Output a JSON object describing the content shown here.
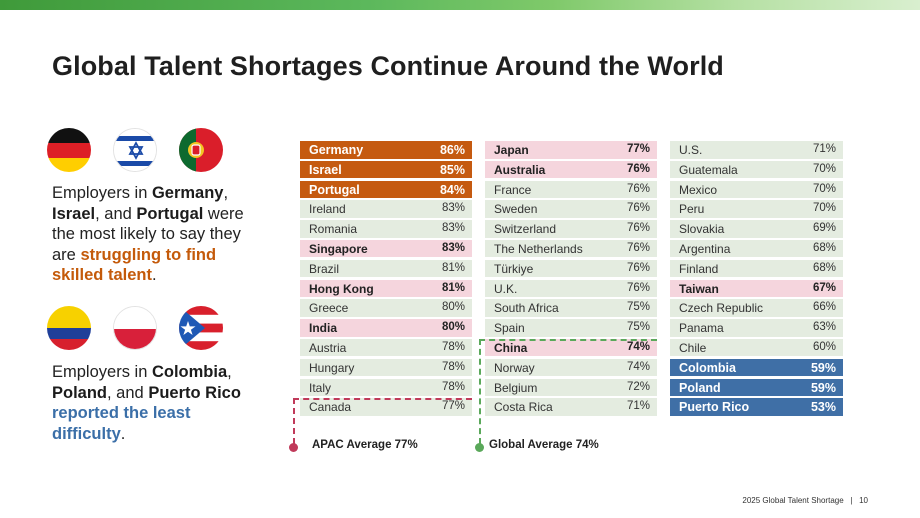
{
  "title": "Global Talent Shortages Continue Around the World",
  "colors": {
    "orange": "#c55a10",
    "pink": "#f5d5dd",
    "blue": "#3f6fa6",
    "neutral": "#e4ece0",
    "apac": "#c03a5a",
    "global": "#5aa85a"
  },
  "blurb_top": {
    "p1": "Employers in ",
    "c1": "Germany",
    "p2": ",",
    "c2": "Israel",
    "p3": ", and ",
    "c3": "Portugal",
    "p4": " were the most likely to say they are ",
    "emph": "struggling to find skilled talent",
    "p5": "."
  },
  "blurb_bottom": {
    "p1": "Employers in ",
    "c1": "Colombia",
    "p2": ",",
    "c2": "Poland",
    "p3": ", and ",
    "c3": "Puerto Rico",
    "p4": " ",
    "emph": "reported the least difficulty",
    "p5": "."
  },
  "flags": [
    "germany-flag-icon",
    "israel-flag-icon",
    "portugal-flag-icon",
    "colombia-flag-icon",
    "poland-flag-icon",
    "puerto-rico-flag-icon"
  ],
  "columns": [
    [
      {
        "name": "Germany",
        "pct": "86%",
        "style": "orange"
      },
      {
        "name": "Israel",
        "pct": "85%",
        "style": "orange"
      },
      {
        "name": "Portugal",
        "pct": "84%",
        "style": "orange"
      },
      {
        "name": "Ireland",
        "pct": "83%",
        "style": "neutral"
      },
      {
        "name": "Romania",
        "pct": "83%",
        "style": "neutral"
      },
      {
        "name": "Singapore",
        "pct": "83%",
        "style": "pink"
      },
      {
        "name": "Brazil",
        "pct": "81%",
        "style": "neutral"
      },
      {
        "name": "Hong Kong",
        "pct": "81%",
        "style": "pink"
      },
      {
        "name": "Greece",
        "pct": "80%",
        "style": "neutral"
      },
      {
        "name": "India",
        "pct": "80%",
        "style": "pink"
      },
      {
        "name": "Austria",
        "pct": "78%",
        "style": "neutral"
      },
      {
        "name": "Hungary",
        "pct": "78%",
        "style": "neutral"
      },
      {
        "name": "Italy",
        "pct": "78%",
        "style": "neutral"
      },
      {
        "name": "Canada",
        "pct": "77%",
        "style": "neutral"
      }
    ],
    [
      {
        "name": "Japan",
        "pct": "77%",
        "style": "pink"
      },
      {
        "name": "Australia",
        "pct": "76%",
        "style": "pink"
      },
      {
        "name": "France",
        "pct": "76%",
        "style": "neutral"
      },
      {
        "name": "Sweden",
        "pct": "76%",
        "style": "neutral"
      },
      {
        "name": "Switzerland",
        "pct": "76%",
        "style": "neutral"
      },
      {
        "name": "The Netherlands",
        "pct": "76%",
        "style": "neutral"
      },
      {
        "name": "Türkiye",
        "pct": "76%",
        "style": "neutral"
      },
      {
        "name": "U.K.",
        "pct": "76%",
        "style": "neutral"
      },
      {
        "name": "South Africa",
        "pct": "75%",
        "style": "neutral"
      },
      {
        "name": "Spain",
        "pct": "75%",
        "style": "neutral"
      },
      {
        "name": "China",
        "pct": "74%",
        "style": "pink"
      },
      {
        "name": "Norway",
        "pct": "74%",
        "style": "neutral"
      },
      {
        "name": "Belgium",
        "pct": "72%",
        "style": "neutral"
      },
      {
        "name": "Costa Rica",
        "pct": "71%",
        "style": "neutral"
      }
    ],
    [
      {
        "name": "U.S.",
        "pct": "71%",
        "style": "neutral"
      },
      {
        "name": "Guatemala",
        "pct": "70%",
        "style": "neutral"
      },
      {
        "name": "Mexico",
        "pct": "70%",
        "style": "neutral"
      },
      {
        "name": "Peru",
        "pct": "70%",
        "style": "neutral"
      },
      {
        "name": "Slovakia",
        "pct": "69%",
        "style": "neutral"
      },
      {
        "name": "Argentina",
        "pct": "68%",
        "style": "neutral"
      },
      {
        "name": "Finland",
        "pct": "68%",
        "style": "neutral"
      },
      {
        "name": "Taiwan",
        "pct": "67%",
        "style": "pink"
      },
      {
        "name": "Czech Republic",
        "pct": "66%",
        "style": "neutral"
      },
      {
        "name": "Panama",
        "pct": "63%",
        "style": "neutral"
      },
      {
        "name": "Chile",
        "pct": "60%",
        "style": "neutral"
      },
      {
        "name": "Colombia",
        "pct": "59%",
        "style": "blue"
      },
      {
        "name": "Poland",
        "pct": "59%",
        "style": "blue"
      },
      {
        "name": "Puerto Rico",
        "pct": "53%",
        "style": "blue"
      }
    ]
  ],
  "legend": {
    "apac": "APAC Average 77%",
    "global": "Global Average 74%"
  },
  "footer": {
    "report": "2025 Global Talent Shortage",
    "sep": "|",
    "page": "10"
  }
}
